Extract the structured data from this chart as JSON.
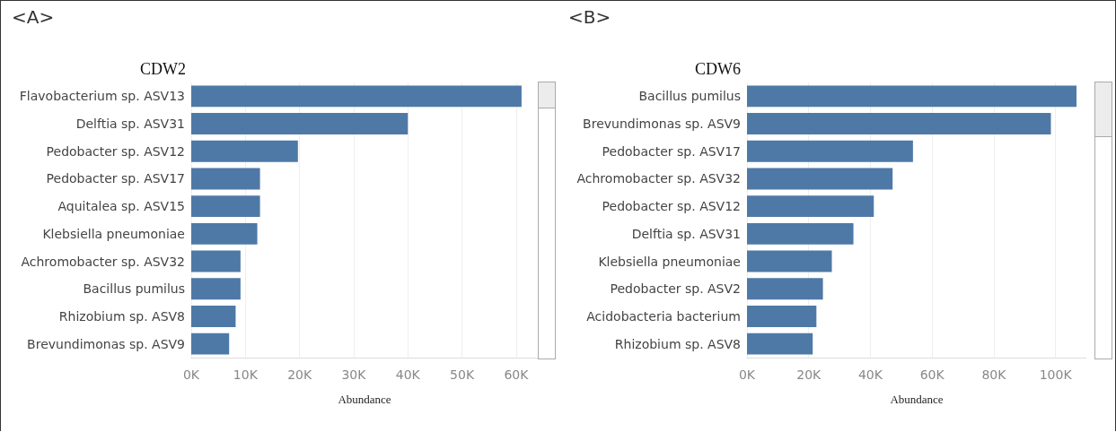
{
  "chart_data": [
    {
      "type": "bar",
      "orientation": "horizontal",
      "title": "CDW2",
      "xlabel": "Abundance",
      "annotations": [
        "<A>"
      ],
      "color": "#4e79a7",
      "grid": "x",
      "categories": [
        "Flavobacterium sp. ASV13",
        "Delftia sp. ASV31",
        "Pedobacter sp. ASV12",
        "Pedobacter sp. ASV17",
        "Aquitalea sp. ASV15",
        "Klebsiella pneumoniae",
        "Achromobacter sp. ASV32",
        "Bacillus pumilus",
        "Rhizobium sp. ASV8",
        "Brevundimonas sp. ASV9"
      ],
      "values": [
        61000,
        40000,
        19700,
        12700,
        12700,
        12200,
        9100,
        9100,
        8200,
        7000
      ],
      "xlim": [
        0,
        64000
      ],
      "xticks": [
        {
          "value": 0,
          "label": "0K"
        },
        {
          "value": 10000,
          "label": "10K"
        },
        {
          "value": 20000,
          "label": "20K"
        },
        {
          "value": 30000,
          "label": "30K"
        },
        {
          "value": 40000,
          "label": "40K"
        },
        {
          "value": 50000,
          "label": "50K"
        },
        {
          "value": 60000,
          "label": "60K"
        }
      ]
    },
    {
      "type": "bar",
      "orientation": "horizontal",
      "title": "CDW6",
      "xlabel": "Abundance",
      "annotations": [
        "<B>"
      ],
      "color": "#4e79a7",
      "grid": "x",
      "categories": [
        "Bacillus pumilus",
        "Brevundimonas sp. ASV9",
        "Pedobacter sp. ASV17",
        "Achromobacter sp. ASV32",
        "Pedobacter sp. ASV12",
        "Delftia sp. ASV31",
        "Klebsiella pneumoniae",
        "Pedobacter sp. ASV2",
        "Acidobacteria bacterium",
        "Rhizobium sp. ASV8"
      ],
      "values": [
        106800,
        98500,
        53800,
        47200,
        41100,
        34500,
        27500,
        24600,
        22500,
        21300
      ],
      "xlim": [
        0,
        110000
      ],
      "xticks": [
        {
          "value": 0,
          "label": "0K"
        },
        {
          "value": 20000,
          "label": "20K"
        },
        {
          "value": 40000,
          "label": "40K"
        },
        {
          "value": 60000,
          "label": "60K"
        },
        {
          "value": 80000,
          "label": "80K"
        },
        {
          "value": 100000,
          "label": "100K"
        }
      ]
    }
  ]
}
